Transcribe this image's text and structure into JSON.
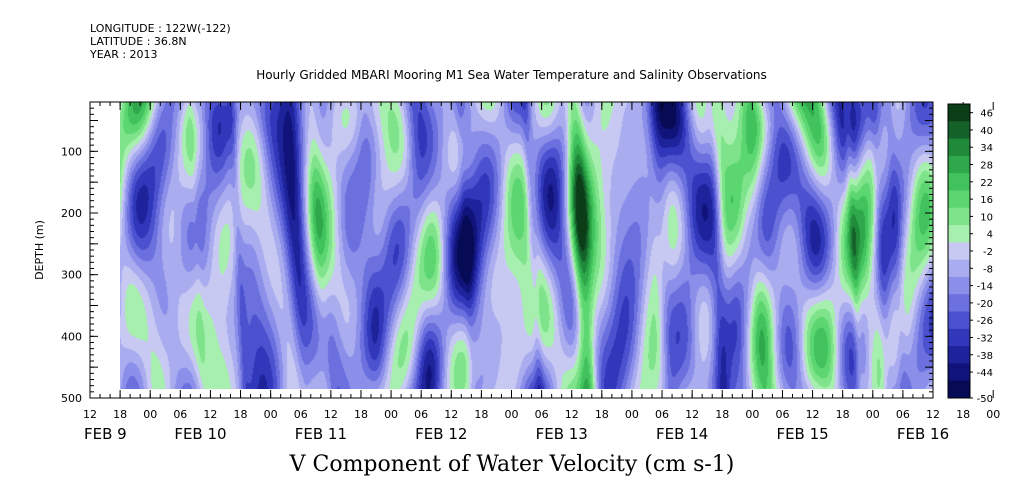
{
  "header": {
    "longitude": "LONGITUDE : 122W(-122)",
    "latitude": "LATITUDE : 36.8N",
    "year": "YEAR : 2013"
  },
  "chart_data": {
    "type": "heatmap",
    "title": "Hourly Gridded MBARI Mooring M1 Sea Water Temperature and Salinity Observations",
    "subtitle": "V Component of Water Velocity (cm s-1)",
    "ylabel": "DEPTH (m)",
    "y_axis": {
      "range": [
        500,
        20
      ],
      "inverted": true,
      "ticks": [
        100,
        200,
        300,
        400,
        500
      ]
    },
    "x_axis": {
      "hour_ticks": [
        "12",
        "18",
        "00",
        "06",
        "12",
        "18",
        "00",
        "06",
        "12",
        "18",
        "00",
        "06",
        "12",
        "18",
        "00",
        "06",
        "12",
        "18",
        "00",
        "06",
        "12",
        "18",
        "00",
        "06",
        "12",
        "18",
        "00",
        "06",
        "12",
        "18",
        "00",
        "06"
      ],
      "date_labels": [
        "FEB  9",
        "FEB 10",
        "FEB 11",
        "FEB 12",
        "FEB 13",
        "FEB 14",
        "FEB 15",
        "FEB 16"
      ],
      "range": [
        "2013-02-09T12:00",
        "2013-02-16T12:00"
      ]
    },
    "data_start": "2013-02-09T18:00",
    "data_depth_range": [
      20,
      486
    ],
    "colorbar": {
      "levels": [
        "46",
        "40",
        "34",
        "28",
        "22",
        "16",
        "10",
        "4",
        "-2",
        "-8",
        "-14",
        "-20",
        "-26",
        "-32",
        "-38",
        "-44",
        "-50"
      ],
      "colors": [
        "#0b3d17",
        "#14612a",
        "#1f8a3a",
        "#2ea84a",
        "#41c25c",
        "#5cd670",
        "#7ee38a",
        "#a7efae",
        "#c7c9f2",
        "#a9acef",
        "#8b8fe9",
        "#6b70de",
        "#4c52cf",
        "#3137ba",
        "#1e239c",
        "#10137a",
        "#070a55"
      ]
    },
    "contour_interval": 6,
    "value_range": [
      -50,
      46
    ]
  }
}
